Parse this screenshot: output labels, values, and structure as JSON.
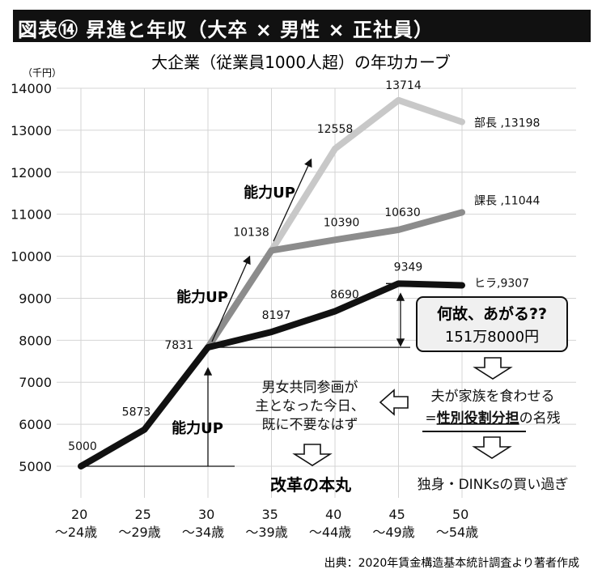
{
  "header": {
    "title": "図表⑭ 昇進と年収（大卒 × 男性 × 正社員）"
  },
  "chart_data": {
    "type": "line",
    "title": "大企業（従業員1000人超）の年功カーブ",
    "yunit": "（千円）",
    "categories": [
      "20〜24歳",
      "25〜29歳",
      "30〜34歳",
      "35〜39歳",
      "40〜44歳",
      "45〜49歳",
      "50〜54歳"
    ],
    "x_ticks": [
      {
        "top": "20",
        "bottom": "〜24歳"
      },
      {
        "top": "25",
        "bottom": "〜29歳"
      },
      {
        "top": "30",
        "bottom": "〜34歳"
      },
      {
        "top": "35",
        "bottom": "〜39歳"
      },
      {
        "top": "40",
        "bottom": "〜44歳"
      },
      {
        "top": "45",
        "bottom": "〜49歳"
      },
      {
        "top": "50",
        "bottom": "〜54歳"
      }
    ],
    "ylim": [
      5000,
      14000
    ],
    "y_ticks": [
      5000,
      6000,
      7000,
      8000,
      9000,
      10000,
      11000,
      12000,
      13000,
      14000
    ],
    "series": [
      {
        "name": "部長",
        "color": "#c8c8c8",
        "values": [
          null,
          null,
          7831,
          10138,
          12558,
          13714,
          13198
        ],
        "labels": [
          "",
          "",
          "",
          "",
          "12558",
          "13714",
          "部長 ,13198"
        ]
      },
      {
        "name": "課長",
        "color": "#8c8c8c",
        "values": [
          null,
          null,
          7831,
          10138,
          10390,
          10630,
          11044
        ],
        "labels": [
          "",
          "",
          "",
          "10138",
          "10390",
          "10630",
          "課長 ,11044"
        ]
      },
      {
        "name": "ヒラ",
        "color": "#111111",
        "values": [
          5000,
          5873,
          7831,
          8197,
          8690,
          9349,
          9307
        ],
        "labels": [
          "5000",
          "5873",
          "7831",
          "8197",
          "8690",
          "9349",
          "ヒラ,9307"
        ]
      }
    ],
    "annotations": {
      "ability_up": "能力UP",
      "callout_line1": "何故、あがる??",
      "callout_line2": "151万8000円",
      "text1_lines": [
        "夫が家族を食わせる"
      ],
      "text1_prefix": "=",
      "text1_underlined": "性別役割分担",
      "text1_suffix": "の名残",
      "text2": "独身・DINKsの買い過ぎ",
      "text3_lines": [
        "男女共同参画が",
        "主となった今日、",
        "既に不要なはず"
      ],
      "text4": "改革の本丸"
    },
    "source": "出典：2020年賃金構造基本統計調査より著者作成"
  }
}
